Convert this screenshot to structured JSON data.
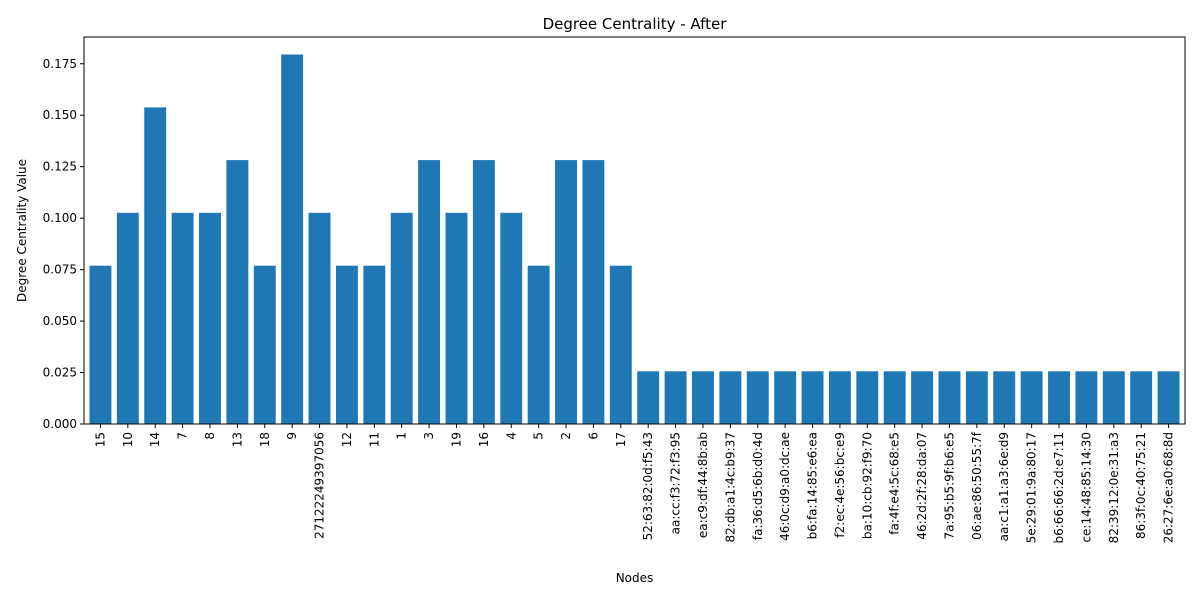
{
  "chart_data": {
    "type": "bar",
    "title": "Degree Centrality - After",
    "xlabel": "Nodes",
    "ylabel": "Degree Centrality Value",
    "ylim": [
      0,
      0.188
    ],
    "yticks": [
      "0.000",
      "0.025",
      "0.050",
      "0.075",
      "0.100",
      "0.125",
      "0.150",
      "0.175"
    ],
    "grid": false,
    "legend": "none",
    "bar_color": "#1f77b4",
    "categories": [
      "15",
      "10",
      "14",
      "7",
      "8",
      "13",
      "18",
      "9",
      "27122249397056",
      "12",
      "11",
      "1",
      "3",
      "19",
      "16",
      "4",
      "5",
      "2",
      "6",
      "17",
      "52:63:82:0d:f5:43",
      "aa:cc:f3:72:f3:95",
      "ea:c9:df:44:8b:ab",
      "82:db:a1:4c:b9:37",
      "fa:36:d5:6b:d0:4d",
      "46:0c:d9:a0:dc:ae",
      "b6:fa:14:85:e6:ea",
      "f2:ec:4e:56:bc:e9",
      "ba:10:cb:92:f9:70",
      "fa:4f:e4:5c:68:e5",
      "46:2d:2f:28:da:07",
      "7a:95:b5:9f:b6:e5",
      "06:ae:86:50:55:7f",
      "aa:c1:a1:a3:6e:d9",
      "5e:29:01:9a:80:17",
      "b6:66:66:2d:e7:11",
      "ce:14:48:85:14:30",
      "82:39:12:0e:31:a3",
      "86:3f:0c:40:75:21",
      "26:27:6e:a0:68:8d"
    ],
    "values": [
      0.0769,
      0.1026,
      0.1538,
      0.1026,
      0.1026,
      0.1282,
      0.0769,
      0.1795,
      0.1026,
      0.0769,
      0.0769,
      0.1026,
      0.1282,
      0.1026,
      0.1282,
      0.1026,
      0.0769,
      0.1282,
      0.1282,
      0.0769,
      0.0256,
      0.0256,
      0.0256,
      0.0256,
      0.0256,
      0.0256,
      0.0256,
      0.0256,
      0.0256,
      0.0256,
      0.0256,
      0.0256,
      0.0256,
      0.0256,
      0.0256,
      0.0256,
      0.0256,
      0.0256,
      0.0256,
      0.0256
    ]
  }
}
